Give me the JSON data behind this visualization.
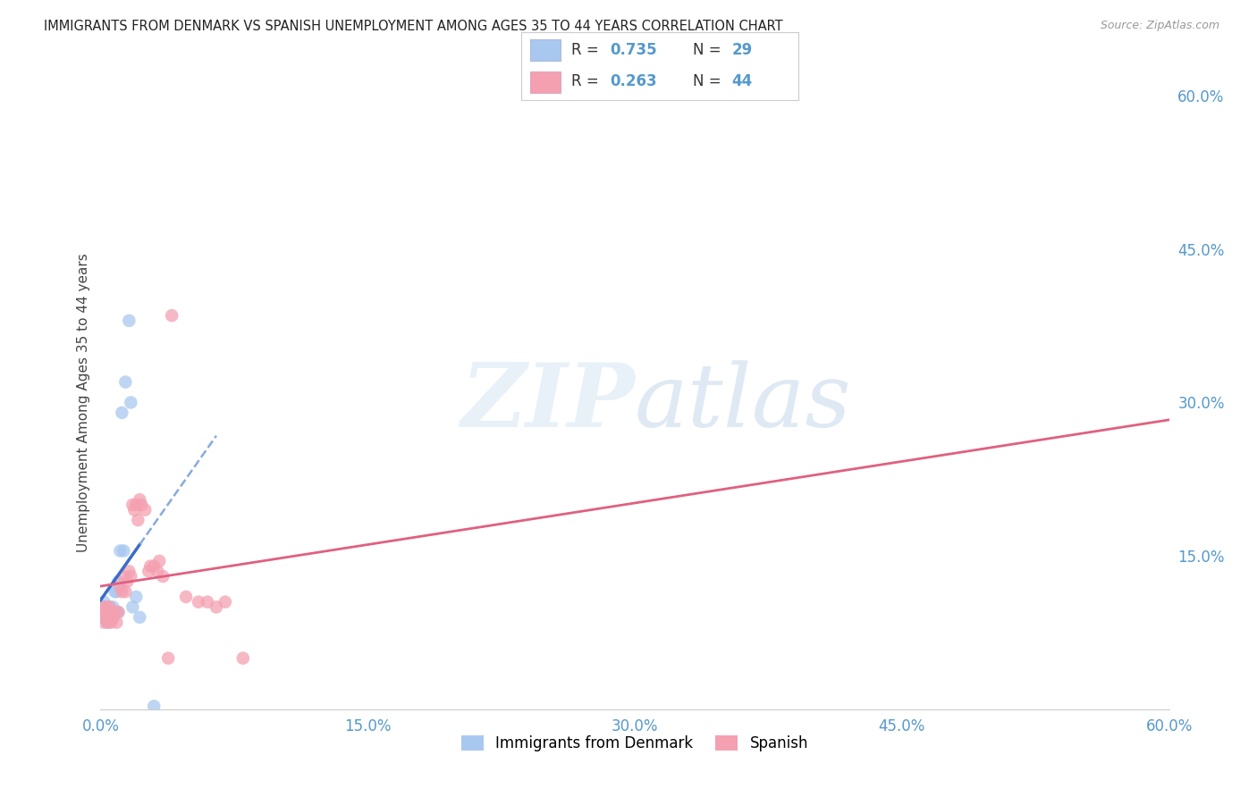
{
  "title": "IMMIGRANTS FROM DENMARK VS SPANISH UNEMPLOYMENT AMONG AGES 35 TO 44 YEARS CORRELATION CHART",
  "source": "Source: ZipAtlas.com",
  "ylabel": "Unemployment Among Ages 35 to 44 years",
  "xlim": [
    0.0,
    0.6
  ],
  "ylim": [
    0.0,
    0.6
  ],
  "background_color": "#ffffff",
  "grid_color": "#cccccc",
  "denmark_color": "#a8c8f0",
  "danish_line_color": "#3a6cc8",
  "danish_line_dash_color": "#88aadd",
  "spanish_color": "#f4a0b0",
  "spanish_line_color": "#e06080",
  "denmark_R": 0.735,
  "denmark_N": 29,
  "spanish_R": 0.263,
  "spanish_N": 44,
  "legend_label_denmark": "Immigrants from Denmark",
  "legend_label_spanish": "Spanish",
  "tick_color": "#5599cc",
  "denmark_x": [
    0.001,
    0.001,
    0.002,
    0.002,
    0.003,
    0.003,
    0.004,
    0.004,
    0.005,
    0.005,
    0.006,
    0.006,
    0.007,
    0.007,
    0.008,
    0.009,
    0.009,
    0.01,
    0.01,
    0.011,
    0.012,
    0.013,
    0.014,
    0.016,
    0.017,
    0.018,
    0.02,
    0.022,
    0.03
  ],
  "denmark_y": [
    0.1,
    0.09,
    0.105,
    0.095,
    0.1,
    0.09,
    0.095,
    0.085,
    0.1,
    0.095,
    0.095,
    0.088,
    0.1,
    0.09,
    0.115,
    0.115,
    0.095,
    0.125,
    0.095,
    0.155,
    0.29,
    0.155,
    0.32,
    0.38,
    0.3,
    0.1,
    0.11,
    0.09,
    0.003
  ],
  "spanish_x": [
    0.001,
    0.001,
    0.002,
    0.002,
    0.003,
    0.003,
    0.004,
    0.004,
    0.005,
    0.005,
    0.006,
    0.006,
    0.007,
    0.008,
    0.009,
    0.01,
    0.011,
    0.012,
    0.013,
    0.014,
    0.015,
    0.016,
    0.017,
    0.018,
    0.019,
    0.02,
    0.021,
    0.022,
    0.023,
    0.025,
    0.027,
    0.028,
    0.03,
    0.032,
    0.033,
    0.035,
    0.038,
    0.04,
    0.048,
    0.055,
    0.06,
    0.065,
    0.07,
    0.08
  ],
  "spanish_y": [
    0.1,
    0.09,
    0.095,
    0.085,
    0.1,
    0.09,
    0.095,
    0.085,
    0.1,
    0.088,
    0.095,
    0.085,
    0.09,
    0.095,
    0.085,
    0.095,
    0.12,
    0.115,
    0.13,
    0.115,
    0.125,
    0.135,
    0.13,
    0.2,
    0.195,
    0.2,
    0.185,
    0.205,
    0.2,
    0.195,
    0.135,
    0.14,
    0.14,
    0.135,
    0.145,
    0.13,
    0.05,
    0.385,
    0.11,
    0.105,
    0.105,
    0.1,
    0.105,
    0.05
  ],
  "spanish_line_x0": 0.0,
  "spanish_line_x1": 0.6,
  "spanish_line_y0": 0.09,
  "spanish_line_y1": 0.275
}
